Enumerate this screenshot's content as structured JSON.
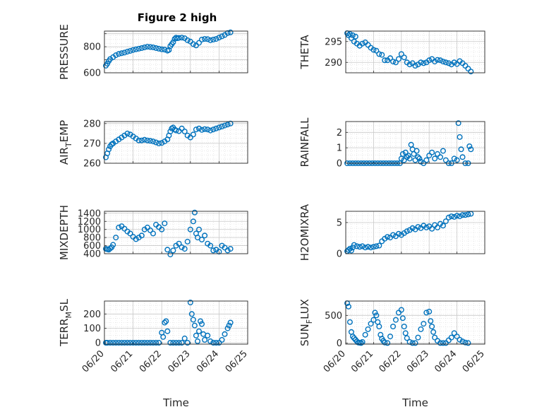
{
  "title": "Figure 2 high",
  "x_ticks": [
    "06/20",
    "06/21",
    "06/22",
    "06/23",
    "06/24",
    "06/25"
  ],
  "x_label": "Time",
  "marker_color": "#0072BD",
  "chart_data": [
    {
      "type": "scatter",
      "ylabel": "PRESSURE",
      "ylim": [
        600,
        920
      ],
      "yticks": [
        600,
        700,
        800,
        900
      ],
      "ytick_labels": [
        "600",
        "",
        "800",
        ""
      ],
      "xlim": [
        0,
        5
      ],
      "x": [
        0.05,
        0.1,
        0.15,
        0.2,
        0.3,
        0.4,
        0.5,
        0.6,
        0.7,
        0.8,
        0.9,
        1.0,
        1.1,
        1.2,
        1.3,
        1.4,
        1.5,
        1.6,
        1.7,
        1.8,
        1.9,
        2.0,
        2.1,
        2.2,
        2.25,
        2.3,
        2.35,
        2.4,
        2.45,
        2.5,
        2.55,
        2.6,
        2.7,
        2.8,
        2.9,
        3.0,
        3.1,
        3.2,
        3.3,
        3.4,
        3.5,
        3.6,
        3.7,
        3.8,
        3.9,
        4.0,
        4.1,
        4.2,
        4.3,
        4.4
      ],
      "y": [
        655,
        670,
        690,
        705,
        720,
        735,
        745,
        750,
        755,
        762,
        768,
        775,
        780,
        785,
        790,
        795,
        800,
        798,
        795,
        790,
        785,
        780,
        778,
        770,
        775,
        805,
        820,
        835,
        860,
        870,
        865,
        868,
        870,
        865,
        850,
        840,
        820,
        810,
        830,
        855,
        860,
        858,
        850,
        855,
        860,
        870,
        880,
        890,
        905,
        910
      ]
    },
    {
      "type": "scatter",
      "ylabel": "THETA",
      "ylim": [
        287.5,
        297.5
      ],
      "yticks": [
        290,
        295
      ],
      "ytick_labels": [
        "290",
        "295"
      ],
      "xlim": [
        0,
        5
      ],
      "x": [
        0.05,
        0.1,
        0.15,
        0.2,
        0.25,
        0.3,
        0.35,
        0.4,
        0.5,
        0.6,
        0.7,
        0.8,
        0.9,
        1.0,
        1.1,
        1.2,
        1.3,
        1.4,
        1.5,
        1.6,
        1.7,
        1.8,
        1.9,
        2.0,
        2.1,
        2.2,
        2.3,
        2.4,
        2.5,
        2.6,
        2.7,
        2.8,
        2.9,
        3.0,
        3.1,
        3.2,
        3.3,
        3.4,
        3.5,
        3.6,
        3.7,
        3.8,
        3.9,
        4.0,
        4.1,
        4.2,
        4.3,
        4.4,
        4.5
      ],
      "y": [
        297,
        296.5,
        296.8,
        295.8,
        296.5,
        295,
        296.2,
        294.5,
        294,
        294.5,
        294.8,
        294.2,
        293.5,
        293,
        292.8,
        292,
        291.8,
        290.5,
        290.5,
        291,
        290.2,
        290,
        290.8,
        292,
        291.2,
        290,
        289.5,
        289.8,
        289.2,
        289.5,
        290,
        289.8,
        290,
        290.5,
        290.8,
        290.2,
        290.6,
        290.5,
        290.2,
        290,
        289.8,
        289.5,
        290,
        289.6,
        290.3,
        289.8,
        289.2,
        288.5,
        287.8
      ]
    },
    {
      "type": "scatter",
      "ylabel": "AIRTEMP",
      "ylim": [
        260,
        281
      ],
      "yticks": [
        260,
        270,
        280
      ],
      "ytick_labels": [
        "260",
        "270",
        "280"
      ],
      "xlim": [
        0,
        5
      ],
      "x": [
        0.05,
        0.1,
        0.15,
        0.2,
        0.25,
        0.3,
        0.4,
        0.5,
        0.6,
        0.7,
        0.8,
        0.9,
        1.0,
        1.1,
        1.2,
        1.3,
        1.4,
        1.5,
        1.6,
        1.7,
        1.8,
        1.9,
        2.0,
        2.1,
        2.2,
        2.25,
        2.3,
        2.35,
        2.4,
        2.45,
        2.5,
        2.6,
        2.7,
        2.8,
        2.9,
        3.0,
        3.1,
        3.2,
        3.3,
        3.4,
        3.5,
        3.6,
        3.7,
        3.8,
        3.9,
        4.0,
        4.1,
        4.2,
        4.3,
        4.4
      ],
      "y": [
        263,
        265,
        267,
        268.5,
        269.5,
        270,
        271,
        272,
        273,
        274,
        275,
        274.5,
        273.5,
        272.5,
        271.5,
        271.5,
        271.8,
        271.5,
        271.3,
        271,
        270.5,
        270,
        270.2,
        271,
        272,
        274,
        276,
        277.5,
        278,
        277,
        276.5,
        276.2,
        277.5,
        276,
        274,
        273,
        274.5,
        277,
        277.5,
        276.8,
        277.2,
        277,
        276.5,
        277,
        277.5,
        278,
        278.5,
        279,
        279.5,
        280
      ]
    },
    {
      "type": "scatter",
      "ylabel": "RAINFALL",
      "ylim": [
        0,
        2.7
      ],
      "yticks": [
        0,
        1,
        2
      ],
      "ytick_labels": [
        "0",
        "1",
        "2"
      ],
      "xlim": [
        0,
        5
      ],
      "x": [
        0.05,
        0.15,
        0.25,
        0.35,
        0.45,
        0.55,
        0.65,
        0.75,
        0.85,
        0.95,
        1.05,
        1.15,
        1.25,
        1.35,
        1.45,
        1.55,
        1.65,
        1.75,
        1.85,
        1.95,
        2.0,
        2.05,
        2.1,
        2.15,
        2.2,
        2.25,
        2.3,
        2.35,
        2.4,
        2.45,
        2.5,
        2.55,
        2.6,
        2.65,
        2.7,
        2.8,
        2.9,
        3.0,
        3.1,
        3.2,
        3.3,
        3.4,
        3.5,
        3.6,
        3.7,
        3.8,
        3.9,
        4.0,
        4.05,
        4.1,
        4.15,
        4.2,
        4.3,
        4.4,
        4.45,
        4.5
      ],
      "y": [
        0,
        0,
        0,
        0,
        0,
        0,
        0,
        0,
        0,
        0,
        0,
        0,
        0,
        0,
        0,
        0,
        0,
        0,
        0,
        0,
        0.3,
        0.6,
        0.2,
        0.7,
        0.4,
        0.5,
        0.3,
        1.2,
        0.9,
        0.6,
        0.2,
        0.8,
        0.4,
        0.3,
        0.1,
        0,
        0.2,
        0.5,
        0.7,
        0.3,
        0.6,
        0.4,
        0.8,
        0.2,
        0,
        0,
        0.3,
        0.2,
        2.6,
        1.7,
        0.9,
        0.4,
        0,
        0,
        1.1,
        0.9
      ]
    },
    {
      "type": "scatter",
      "ylabel": "MIXDEPTH",
      "ylim": [
        400,
        1450
      ],
      "yticks": [
        400,
        600,
        800,
        1000,
        1200,
        1400
      ],
      "ytick_labels": [
        "400",
        "600",
        "800",
        "1000",
        "1200",
        "1400"
      ],
      "xlim": [
        0,
        5
      ],
      "x": [
        0.05,
        0.1,
        0.15,
        0.2,
        0.25,
        0.3,
        0.4,
        0.5,
        0.6,
        0.7,
        0.8,
        0.9,
        1.0,
        1.1,
        1.2,
        1.3,
        1.4,
        1.5,
        1.6,
        1.7,
        1.8,
        1.9,
        2.0,
        2.1,
        2.2,
        2.3,
        2.4,
        2.5,
        2.6,
        2.7,
        2.8,
        2.9,
        3.0,
        3.1,
        3.15,
        3.2,
        3.25,
        3.3,
        3.4,
        3.5,
        3.6,
        3.7,
        3.8,
        3.9,
        4.0,
        4.1,
        4.2,
        4.3,
        4.4
      ],
      "y": [
        520,
        510,
        500,
        530,
        560,
        620,
        800,
        1050,
        1080,
        1020,
        950,
        900,
        820,
        760,
        800,
        850,
        1000,
        1050,
        980,
        900,
        1120,
        1060,
        1000,
        1150,
        500,
        380,
        480,
        600,
        650,
        560,
        520,
        700,
        1000,
        1200,
        1420,
        900,
        800,
        1000,
        750,
        850,
        650,
        600,
        480,
        500,
        450,
        600,
        550,
        480,
        520
      ]
    },
    {
      "type": "scatter",
      "ylabel": "H2OMIXRA",
      "ylim": [
        0,
        6.8
      ],
      "yticks": [
        0,
        5
      ],
      "ytick_labels": [
        "0",
        "5"
      ],
      "xlim": [
        0,
        5
      ],
      "x": [
        0.05,
        0.1,
        0.15,
        0.2,
        0.25,
        0.3,
        0.4,
        0.5,
        0.6,
        0.7,
        0.8,
        0.9,
        1.0,
        1.1,
        1.2,
        1.3,
        1.4,
        1.5,
        1.6,
        1.7,
        1.8,
        1.9,
        2.0,
        2.1,
        2.2,
        2.3,
        2.4,
        2.5,
        2.6,
        2.7,
        2.8,
        2.9,
        3.0,
        3.1,
        3.2,
        3.3,
        3.4,
        3.5,
        3.6,
        3.7,
        3.8,
        3.9,
        4.0,
        4.1,
        4.2,
        4.3,
        4.4,
        4.5
      ],
      "y": [
        0.4,
        0.6,
        0.8,
        0.5,
        1.0,
        1.4,
        1.2,
        1.1,
        1.2,
        1.0,
        1.1,
        1.0,
        1.1,
        1.2,
        1.3,
        2.0,
        2.4,
        2.7,
        2.6,
        3.0,
        2.8,
        3.2,
        3.0,
        3.3,
        3.6,
        3.8,
        4.1,
        3.9,
        4.3,
        4.1,
        4.5,
        4.2,
        4.4,
        4.0,
        4.6,
        4.2,
        4.8,
        4.5,
        5.2,
        5.8,
        6.0,
        5.9,
        6.1,
        6.0,
        6.2,
        6.2,
        6.3,
        6.4
      ]
    },
    {
      "type": "scatter",
      "ylabel": "TERRMSL",
      "ylim": [
        -10,
        290
      ],
      "yticks": [
        0,
        100,
        200
      ],
      "ytick_labels": [
        "0",
        "100",
        "200"
      ],
      "xlim": [
        0,
        5
      ],
      "x": [
        0.05,
        0.1,
        0.2,
        0.3,
        0.4,
        0.5,
        0.6,
        0.7,
        0.8,
        0.9,
        1.0,
        1.1,
        1.2,
        1.3,
        1.4,
        1.5,
        1.6,
        1.7,
        1.8,
        1.9,
        2.0,
        2.05,
        2.1,
        2.15,
        2.2,
        2.3,
        2.4,
        2.5,
        2.6,
        2.7,
        2.8,
        2.9,
        3.0,
        3.05,
        3.1,
        3.15,
        3.2,
        3.25,
        3.3,
        3.35,
        3.4,
        3.45,
        3.5,
        3.6,
        3.7,
        3.8,
        3.9,
        4.0,
        4.1,
        4.2,
        4.3,
        4.35,
        4.4
      ],
      "y": [
        0,
        0,
        0,
        0,
        0,
        0,
        0,
        0,
        0,
        0,
        0,
        0,
        0,
        0,
        0,
        0,
        0,
        0,
        0,
        0,
        70,
        40,
        140,
        150,
        80,
        0,
        0,
        0,
        0,
        0,
        30,
        0,
        280,
        200,
        160,
        120,
        50,
        10,
        80,
        150,
        130,
        60,
        20,
        50,
        10,
        0,
        0,
        0,
        20,
        60,
        100,
        120,
        140
      ]
    },
    {
      "type": "scatter",
      "ylabel": "SUNFLUX",
      "ylim": [
        -20,
        760
      ],
      "yticks": [
        0,
        500
      ],
      "ytick_labels": [
        "0",
        "500"
      ],
      "xlim": [
        0,
        5
      ],
      "x": [
        0.05,
        0.1,
        0.15,
        0.2,
        0.25,
        0.3,
        0.35,
        0.4,
        0.45,
        0.5,
        0.55,
        0.6,
        0.7,
        0.8,
        0.9,
        1.0,
        1.05,
        1.1,
        1.15,
        1.2,
        1.25,
        1.3,
        1.35,
        1.4,
        1.5,
        1.6,
        1.7,
        1.8,
        1.9,
        2.0,
        2.05,
        2.1,
        2.15,
        2.2,
        2.3,
        2.4,
        2.5,
        2.6,
        2.7,
        2.8,
        2.9,
        3.0,
        3.05,
        3.1,
        3.15,
        3.2,
        3.3,
        3.4,
        3.5,
        3.6,
        3.7,
        3.8,
        3.9,
        4.0,
        4.1,
        4.2,
        4.3,
        4.4
      ],
      "y": [
        720,
        660,
        380,
        200,
        120,
        90,
        60,
        30,
        10,
        5,
        0,
        20,
        150,
        250,
        350,
        420,
        550,
        500,
        380,
        300,
        150,
        80,
        40,
        10,
        0,
        120,
        300,
        420,
        550,
        600,
        450,
        300,
        180,
        90,
        20,
        0,
        0,
        100,
        250,
        350,
        550,
        570,
        400,
        300,
        200,
        100,
        40,
        0,
        0,
        0,
        50,
        100,
        180,
        120,
        60,
        30,
        10,
        0
      ]
    }
  ]
}
